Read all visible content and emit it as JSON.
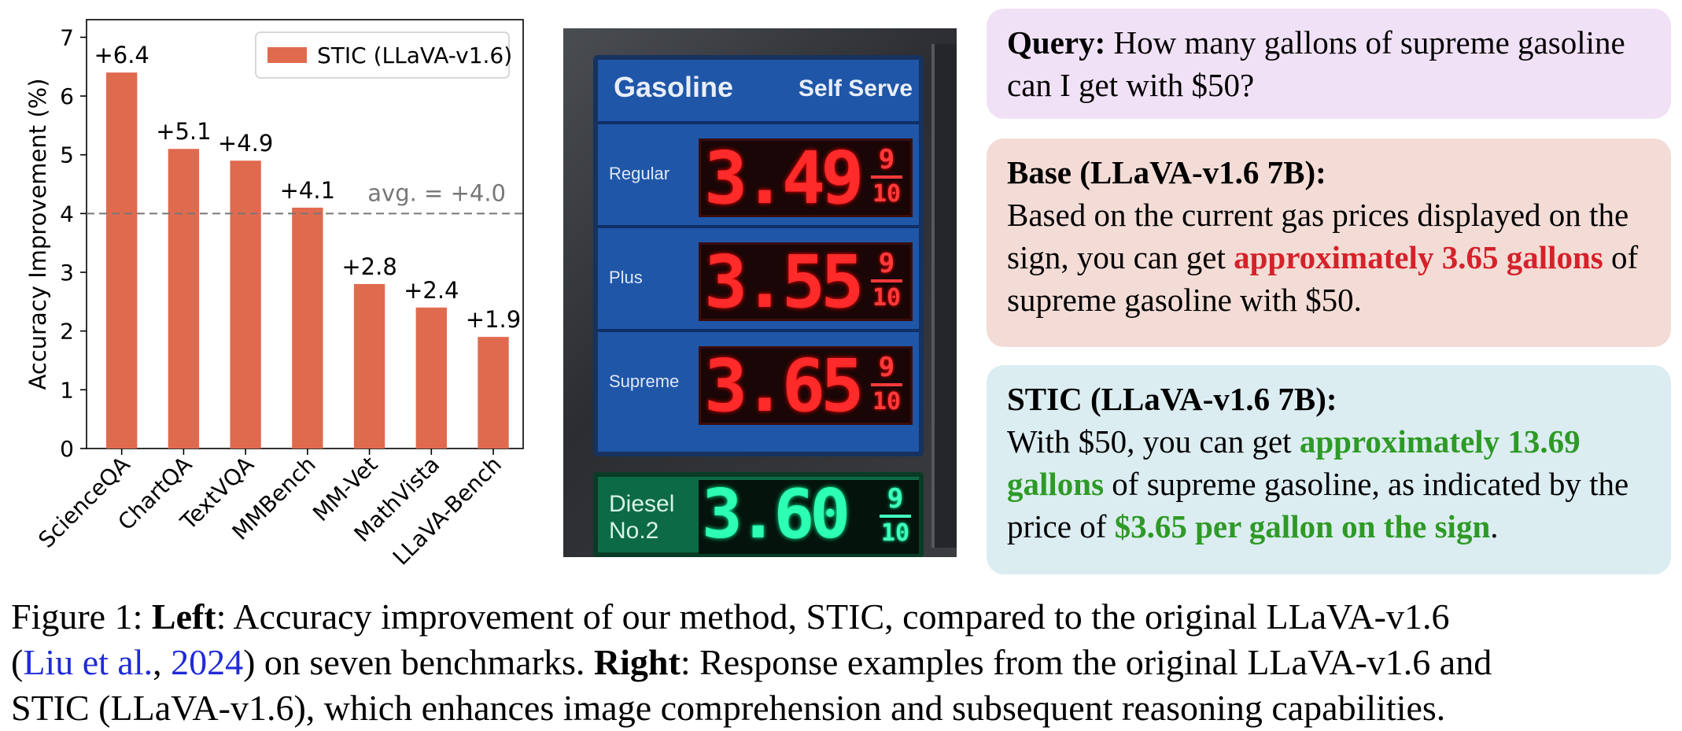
{
  "chart_data": {
    "type": "bar",
    "categories": [
      "ScienceQA",
      "ChartQA",
      "TextVQA",
      "MMBench",
      "MM-Vet",
      "MathVista",
      "LLaVA-Bench"
    ],
    "series": [
      {
        "name": "STIC (LLaVA-v1.6)",
        "values": [
          6.4,
          5.1,
          4.9,
          4.1,
          2.8,
          2.4,
          1.9
        ],
        "color": "#e06a4e"
      }
    ],
    "data_labels": [
      "+6.4",
      "+5.1",
      "+4.9",
      "+4.1",
      "+2.8",
      "+2.4",
      "+1.9"
    ],
    "ylabel": "Accuracy Improvement (%)",
    "xlabel": "",
    "ylim": [
      0,
      7.3
    ],
    "yticks": [
      "0",
      "1",
      "2",
      "3",
      "4",
      "5",
      "6",
      "7"
    ],
    "average": {
      "value": 4.0,
      "label": "avg. = +4.0",
      "style": "dashed",
      "color": "#777777"
    },
    "legend": {
      "label": "STIC (LLaVA-v1.6)",
      "position": "top-right"
    },
    "grid": false
  },
  "sign": {
    "header_left": "Gasoline",
    "header_right": "Self Serve",
    "grades": [
      {
        "label": "Regular",
        "price": "3.49",
        "frac_num": "9",
        "frac_den": "10"
      },
      {
        "label": "Plus",
        "price": "3.55",
        "frac_num": "9",
        "frac_den": "10"
      },
      {
        "label": "Supreme",
        "price": "3.65",
        "frac_num": "9",
        "frac_den": "10"
      }
    ],
    "diesel": {
      "label_line1": "Diesel",
      "label_line2": "No.2",
      "price": "3.60",
      "frac_num": "9",
      "frac_den": "10"
    }
  },
  "query": {
    "heading": "Query:",
    "text": " How many gallons of supreme gasoline can I get with $50?"
  },
  "base": {
    "heading": "Base (LLaVA-v1.6 7B):",
    "text_before": "Based on the current gas prices displayed on the sign, you can get ",
    "highlight": "approximately 3.65 gallons",
    "text_after": " of supreme gasoline with $50."
  },
  "stic": {
    "heading": "STIC (LLaVA-v1.6 7B):",
    "text_before": "With $50, you can get ",
    "highlight1": "approximately 13.69 gallons",
    "text_middle": " of supreme gasoline, as indicated by the price of ",
    "highlight2": "$3.65 per gallon on the sign",
    "text_after": "."
  },
  "caption": {
    "prefix": "Figure 1: ",
    "left_label": "Left",
    "part1": ": Accuracy improvement of our method, STIC, compared to the original LLaVA-v1.6",
    "paren_open": "(",
    "cite_author": "Liu et al.",
    "cite_sep": ", ",
    "cite_year": "2024",
    "part2": ") on seven benchmarks. ",
    "right_label": "Right",
    "part3": ": Response examples from the original LLaVA-v1.6 and",
    "line3": "STIC (LLaVA-v1.6), which enhances image comprehension and subsequent reasoning capabilities."
  }
}
